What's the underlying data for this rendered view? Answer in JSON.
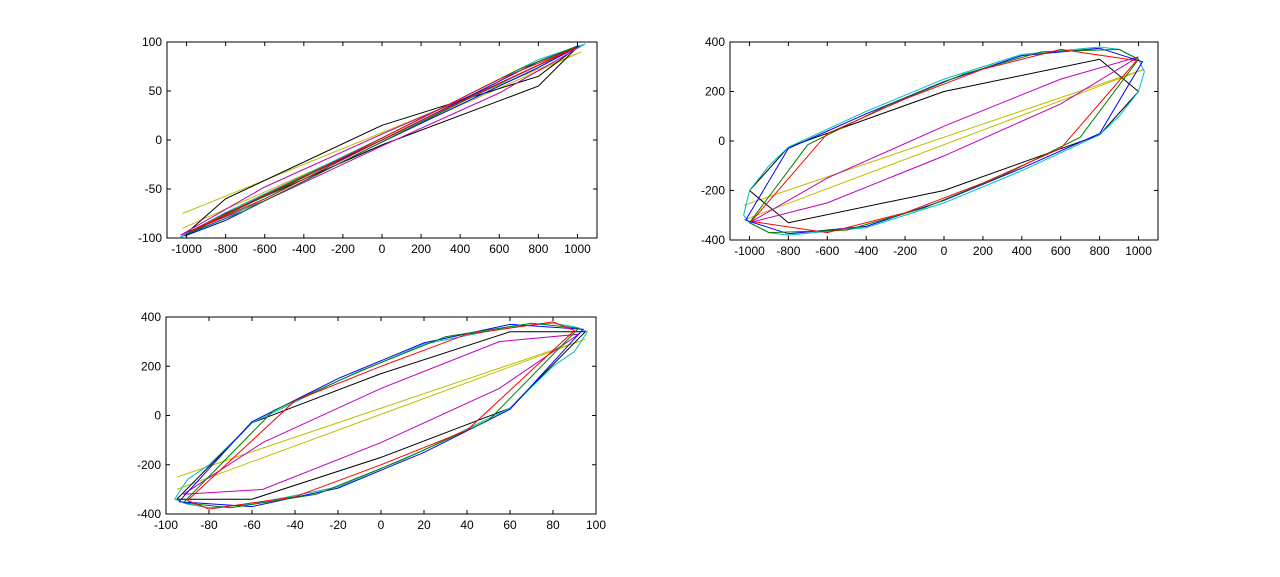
{
  "chart_data": [
    {
      "type": "line",
      "xlim": [
        -1100,
        1100
      ],
      "ylim": [
        -100,
        100
      ],
      "xticks": [
        -1000,
        -800,
        -600,
        -400,
        -200,
        0,
        200,
        400,
        600,
        800,
        1000
      ],
      "yticks": [
        -100,
        -50,
        0,
        50,
        100
      ],
      "xtick_labels": [
        "-1000",
        "-800",
        "-600",
        "-400",
        "-200",
        "0",
        "200",
        "400",
        "600",
        "800",
        "1000"
      ],
      "ytick_labels": [
        "-100",
        "-50",
        "0",
        "50",
        "100"
      ],
      "grid": false,
      "series": [
        {
          "color": "#bfbf00",
          "x": [
            -1020,
            1020,
            -1020
          ],
          "y": [
            -90,
            90,
            -75
          ]
        },
        {
          "color": "#000000",
          "x": [
            -1000,
            -800,
            0,
            800,
            1000,
            800,
            0,
            -800,
            -1000
          ],
          "y": [
            -95,
            -60,
            15,
            65,
            95,
            55,
            -5,
            -75,
            -95
          ]
        },
        {
          "color": "#bf00bf",
          "x": [
            -1030,
            -600,
            0,
            600,
            1030,
            600,
            0,
            -600,
            -1030
          ],
          "y": [
            -97,
            -62,
            -6,
            48,
            97,
            58,
            6,
            -48,
            -97
          ]
        },
        {
          "color": "#00bfbf",
          "x": [
            -1040,
            -800,
            -400,
            0,
            400,
            800,
            1040,
            800,
            400,
            0,
            -400,
            -800,
            -1040
          ],
          "y": [
            -100,
            -80,
            -40,
            0,
            38,
            76,
            98,
            82,
            42,
            2,
            -36,
            -74,
            -100
          ]
        },
        {
          "color": "#0000ff",
          "x": [
            -1010,
            -800,
            -400,
            0,
            400,
            800,
            1010,
            800,
            400,
            0,
            -400,
            -800,
            -1010
          ],
          "y": [
            -98,
            -82,
            -42,
            -2,
            36,
            74,
            96,
            80,
            40,
            0,
            -38,
            -76,
            -98
          ]
        },
        {
          "color": "#008000",
          "x": [
            -1000,
            -700,
            -300,
            100,
            500,
            900,
            1000,
            700,
            300,
            -100,
            -500,
            -900,
            -1000
          ],
          "y": [
            -96,
            -72,
            -32,
            8,
            48,
            86,
            96,
            72,
            32,
            -8,
            -48,
            -86,
            -96
          ]
        },
        {
          "color": "#ff0000",
          "x": [
            -990,
            -600,
            -200,
            200,
            600,
            990,
            600,
            200,
            -200,
            -600,
            -990
          ],
          "y": [
            -94,
            -60,
            -20,
            20,
            58,
            94,
            62,
            22,
            -18,
            -56,
            -94
          ]
        }
      ]
    },
    {
      "type": "line",
      "xlim": [
        -1100,
        1100
      ],
      "ylim": [
        -400,
        400
      ],
      "xticks": [
        -1000,
        -800,
        -600,
        -400,
        -200,
        0,
        200,
        400,
        600,
        800,
        1000
      ],
      "yticks": [
        -400,
        -200,
        0,
        200,
        400
      ],
      "xtick_labels": [
        "-1000",
        "-800",
        "-600",
        "-400",
        "-200",
        "0",
        "200",
        "400",
        "600",
        "800",
        "1000"
      ],
      "ytick_labels": [
        "-400",
        "-200",
        "0",
        "200",
        "400"
      ],
      "grid": false,
      "series": [
        {
          "color": "#bfbf00",
          "x": [
            -1030,
            1030,
            -1030
          ],
          "y": [
            -260,
            290,
            -320
          ]
        },
        {
          "color": "#000000",
          "x": [
            -1000,
            -800,
            0,
            800,
            1000,
            800,
            0,
            -800,
            -1000
          ],
          "y": [
            -200,
            -25,
            200,
            330,
            200,
            25,
            -200,
            -330,
            -200
          ]
        },
        {
          "color": "#bf00bf",
          "x": [
            -1000,
            -600,
            0,
            600,
            1000,
            600,
            0,
            -600,
            -1000
          ],
          "y": [
            -330,
            -150,
            60,
            250,
            340,
            150,
            -60,
            -250,
            -330
          ]
        },
        {
          "color": "#00bfbf",
          "x": [
            -1030,
            -1000,
            -900,
            -800,
            -400,
            0,
            400,
            800,
            900,
            1000,
            1030,
            1000,
            900,
            800,
            400,
            0,
            -400,
            -800,
            -900,
            -1000,
            -1030
          ],
          "y": [
            -300,
            -200,
            -100,
            -25,
            120,
            250,
            350,
            380,
            370,
            330,
            280,
            200,
            100,
            25,
            -120,
            -250,
            -350,
            -380,
            -370,
            -330,
            -300
          ]
        },
        {
          "color": "#0000ff",
          "x": [
            -1020,
            -800,
            -400,
            0,
            400,
            800,
            1020,
            800,
            400,
            0,
            -400,
            -800,
            -1020
          ],
          "y": [
            -320,
            -30,
            110,
            240,
            345,
            375,
            320,
            30,
            -110,
            -240,
            -345,
            -375,
            -320
          ]
        },
        {
          "color": "#008000",
          "x": [
            -1000,
            -700,
            -300,
            100,
            500,
            900,
            1000,
            700,
            300,
            -100,
            -500,
            -900,
            -1000
          ],
          "y": [
            -330,
            -15,
            140,
            270,
            360,
            370,
            330,
            15,
            -140,
            -270,
            -360,
            -370,
            -330
          ]
        },
        {
          "color": "#ff0000",
          "x": [
            -990,
            -600,
            -200,
            200,
            600,
            990,
            600,
            200,
            -200,
            -600,
            -990
          ],
          "y": [
            -325,
            30,
            170,
            290,
            370,
            325,
            -30,
            -170,
            -290,
            -370,
            -325
          ]
        }
      ]
    },
    {
      "type": "line",
      "xlim": [
        -100,
        100
      ],
      "ylim": [
        -400,
        400
      ],
      "xticks": [
        -100,
        -80,
        -60,
        -40,
        -20,
        0,
        20,
        40,
        60,
        80,
        100
      ],
      "yticks": [
        -400,
        -200,
        0,
        200,
        400
      ],
      "xtick_labels": [
        "-100",
        "-80",
        "-60",
        "-40",
        "-20",
        "0",
        "20",
        "40",
        "60",
        "80",
        "100"
      ],
      "ytick_labels": [
        "-400",
        "-200",
        "0",
        "200",
        "400"
      ],
      "grid": false,
      "series": [
        {
          "color": "#bfbf00",
          "x": [
            -95,
            95,
            -95
          ],
          "y": [
            -300,
            310,
            -250
          ]
        },
        {
          "color": "#000000",
          "x": [
            -95,
            -60,
            0,
            60,
            95,
            60,
            0,
            -60,
            -95
          ],
          "y": [
            -340,
            -30,
            170,
            340,
            340,
            30,
            -170,
            -340,
            -340
          ]
        },
        {
          "color": "#bf00bf",
          "x": [
            -92,
            -55,
            0,
            55,
            92,
            55,
            0,
            -55,
            -92
          ],
          "y": [
            -320,
            -110,
            110,
            300,
            330,
            110,
            -110,
            -300,
            -320
          ]
        },
        {
          "color": "#00bfbf",
          "x": [
            -96,
            -90,
            -80,
            -60,
            -20,
            20,
            60,
            80,
            90,
            96,
            90,
            80,
            60,
            20,
            -20,
            -60,
            -80,
            -90,
            -96
          ],
          "y": [
            -340,
            -260,
            -200,
            -30,
            140,
            290,
            360,
            375,
            360,
            340,
            260,
            200,
            30,
            -140,
            -290,
            -360,
            -375,
            -360,
            -340
          ]
        },
        {
          "color": "#0000ff",
          "x": [
            -94,
            -60,
            -20,
            20,
            60,
            94,
            60,
            20,
            -20,
            -60,
            -94
          ],
          "y": [
            -350,
            -25,
            150,
            295,
            370,
            350,
            25,
            -150,
            -295,
            -370,
            -350
          ]
        },
        {
          "color": "#008000",
          "x": [
            -92,
            -50,
            -10,
            30,
            70,
            92,
            50,
            10,
            -30,
            -70,
            -92
          ],
          "y": [
            -355,
            20,
            180,
            320,
            375,
            355,
            -20,
            -180,
            -320,
            -375,
            -355
          ]
        },
        {
          "color": "#ff0000",
          "x": [
            -90,
            -40,
            0,
            40,
            80,
            90,
            40,
            0,
            -40,
            -80,
            -90
          ],
          "y": [
            -345,
            60,
            200,
            330,
            380,
            345,
            -60,
            -200,
            -330,
            -380,
            -345
          ]
        }
      ]
    }
  ]
}
